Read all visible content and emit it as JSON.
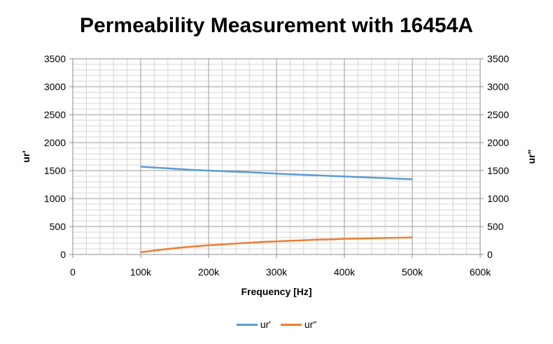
{
  "chart_data": {
    "type": "line",
    "title": "Permeability Measurement with 16454A",
    "xlabel": "Frequency [Hz]",
    "ylabel": "ur'",
    "y2label": "ur\"",
    "xlim": [
      0,
      600000
    ],
    "ylim": [
      0,
      3500
    ],
    "y2lim": [
      0,
      3500
    ],
    "x_tick_labels": [
      "0",
      "100k",
      "200k",
      "300k",
      "400k",
      "500k",
      "600k"
    ],
    "y_tick_labels": [
      "0",
      "500",
      "1000",
      "1500",
      "2000",
      "2500",
      "3000",
      "3500"
    ],
    "y2_tick_labels": [
      "0",
      "500",
      "1000",
      "1500",
      "2000",
      "2500",
      "3000",
      "3500"
    ],
    "grid": true,
    "legend_position": "bottom",
    "x": [
      100000,
      120000,
      140000,
      160000,
      180000,
      200000,
      220000,
      240000,
      260000,
      280000,
      300000,
      320000,
      340000,
      360000,
      380000,
      400000,
      420000,
      440000,
      460000,
      480000,
      500000
    ],
    "series": [
      {
        "name": "ur'",
        "color": "#5B9BD5",
        "values": [
          1570,
          1555,
          1540,
          1525,
          1510,
          1500,
          1490,
          1480,
          1470,
          1460,
          1445,
          1435,
          1425,
          1415,
          1405,
          1395,
          1385,
          1375,
          1365,
          1355,
          1345
        ]
      },
      {
        "name": "ur\"",
        "color": "#ED7D31",
        "values": [
          40,
          70,
          100,
          125,
          145,
          165,
          180,
          195,
          210,
          225,
          235,
          245,
          255,
          265,
          270,
          280,
          285,
          290,
          295,
          300,
          305
        ]
      }
    ]
  }
}
